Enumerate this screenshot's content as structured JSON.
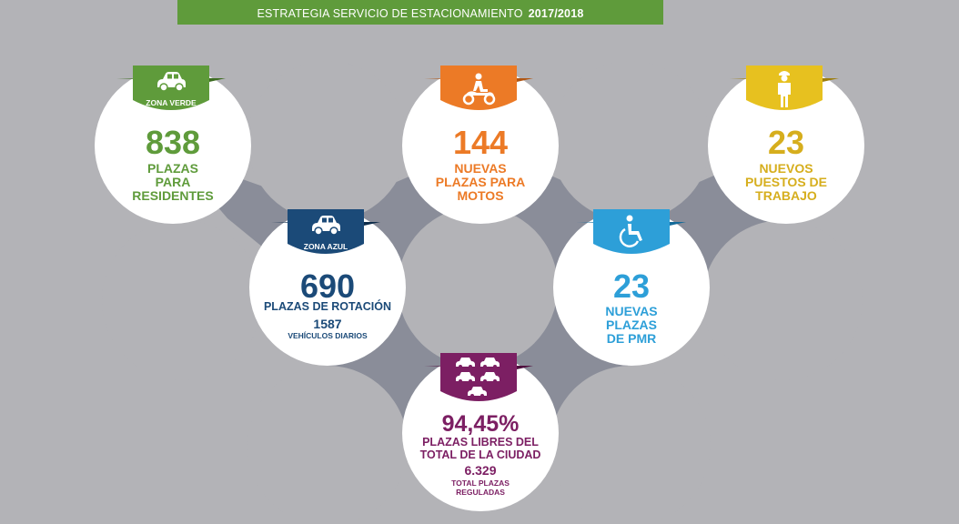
{
  "banner": {
    "title": "ESTRATEGIA SERVICIO DE ESTACIONAMIENTO",
    "period": "2017/2018"
  },
  "colors": {
    "green": "#5f9b3b",
    "orange": "#ec7a26",
    "yellow": "#d6ae1d",
    "navy": "#1b4a78",
    "cyan": "#2d9fd8",
    "purple": "#7c1f63",
    "network": "#8a8d99",
    "background": "#b3b3b7"
  },
  "items": {
    "zona_verde": {
      "tag": "ZONA VERDE",
      "icon": "car-icon",
      "value": "838",
      "line1": "PLAZAS",
      "line2": "PARA",
      "line3": "RESIDENTES"
    },
    "motos": {
      "icon": "motorcycle-icon",
      "value": "144",
      "line1": "NUEVAS",
      "line2": "PLAZAS PARA",
      "line3": "MOTOS"
    },
    "trabajo": {
      "icon": "worker-icon",
      "value": "23",
      "line1": "NUEVOS",
      "line2": "PUESTOS DE",
      "line3": "TRABAJO"
    },
    "zona_azul": {
      "tag": "ZONA AZUL",
      "icon": "car-icon",
      "value": "690",
      "line1": "PLAZAS DE ROTACIÓN",
      "sub_value": "1587",
      "sub_label": "VEHÍCULOS DIARIOS"
    },
    "pmr": {
      "icon": "wheelchair-icon",
      "value": "23",
      "line1": "NUEVAS",
      "line2": "PLAZAS",
      "line3": "DE PMR"
    },
    "total": {
      "icon": "cars-icon",
      "value": "94,45%",
      "line1": "PLAZAS LIBRES DEL",
      "line2": "TOTAL DE LA CIUDAD",
      "sub_value": "6.329",
      "sub_label1": "TOTAL PLAZAS",
      "sub_label2": "REGULADAS"
    }
  }
}
